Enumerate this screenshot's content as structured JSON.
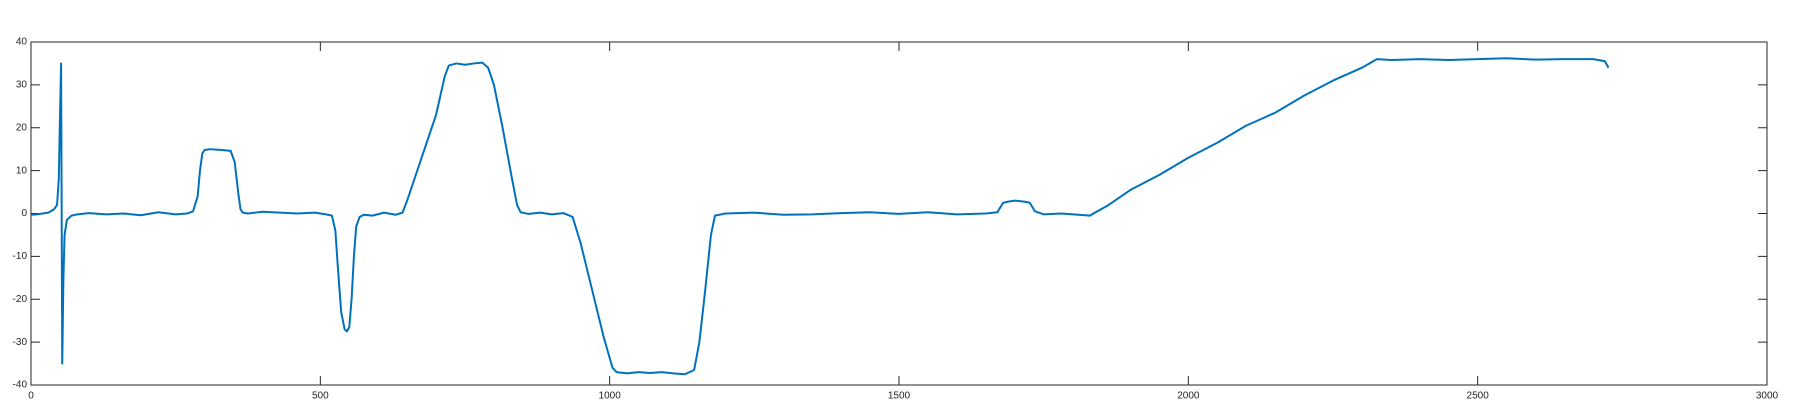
{
  "chart_data": {
    "type": "line",
    "x": [
      0,
      10,
      20,
      30,
      40,
      45,
      48,
      50,
      52,
      53,
      54,
      56,
      58,
      62,
      70,
      80,
      100,
      130,
      160,
      190,
      220,
      250,
      270,
      280,
      288,
      292,
      296,
      300,
      310,
      330,
      345,
      352,
      358,
      362,
      366,
      375,
      400,
      430,
      460,
      490,
      510,
      520,
      526,
      530,
      536,
      542,
      546,
      550,
      554,
      558,
      562,
      568,
      575,
      590,
      610,
      630,
      642,
      650,
      660,
      680,
      700,
      715,
      722,
      735,
      750,
      765,
      780,
      790,
      800,
      815,
      830,
      840,
      846,
      860,
      880,
      900,
      920,
      936,
      950,
      970,
      990,
      1005,
      1012,
      1030,
      1050,
      1070,
      1090,
      1110,
      1130,
      1146,
      1155,
      1165,
      1175,
      1182,
      1200,
      1250,
      1300,
      1350,
      1400,
      1450,
      1500,
      1550,
      1600,
      1650,
      1670,
      1680,
      1690,
      1700,
      1715,
      1726,
      1735,
      1750,
      1780,
      1810,
      1830,
      1836,
      1860,
      1900,
      1950,
      2000,
      2050,
      2100,
      2150,
      2200,
      2250,
      2300,
      2326,
      2350,
      2400,
      2450,
      2500,
      2550,
      2600,
      2650,
      2700,
      2720,
      2726
    ],
    "series": [
      {
        "color": "#0072bd",
        "values": [
          -0.3,
          -0.2,
          0,
          0.2,
          1,
          2,
          8,
          22,
          35,
          0,
          -35,
          -15,
          -5,
          -1.5,
          -0.5,
          -0.2,
          0.1,
          -0.2,
          0,
          -0.4,
          0.3,
          -0.2,
          0,
          0.5,
          4,
          10,
          14,
          14.8,
          15,
          14.8,
          14.6,
          12,
          5,
          1,
          0.2,
          0,
          0.4,
          0.2,
          0,
          0.2,
          -0.2,
          -0.5,
          -4,
          -12,
          -23,
          -27,
          -27.5,
          -26.5,
          -20,
          -10,
          -3,
          -0.8,
          -0.3,
          -0.5,
          0.2,
          -0.3,
          0.2,
          3,
          7,
          15,
          23,
          32,
          34.5,
          35,
          34.7,
          35,
          35.2,
          34,
          30,
          20,
          9,
          2,
          0.3,
          -0.1,
          0.2,
          -0.2,
          0.1,
          -0.8,
          -7,
          -18,
          -29,
          -36,
          -37,
          -37.3,
          -37,
          -37.2,
          -37,
          -37.3,
          -37.5,
          -36.5,
          -30,
          -18,
          -5,
          -0.5,
          0,
          0.2,
          -0.3,
          -0.2,
          0.1,
          0.3,
          -0.1,
          0.3,
          -0.2,
          0,
          0.3,
          2.5,
          2.8,
          3,
          2.8,
          2.5,
          0.5,
          -0.2,
          0,
          -0.3,
          -0.5,
          0,
          1.8,
          5.5,
          9,
          13,
          16.5,
          20.5,
          23.5,
          27.5,
          31,
          34,
          36,
          35.8,
          36,
          35.8,
          36,
          36.2,
          35.9,
          36,
          36,
          35.5,
          34
        ]
      }
    ],
    "xlim": [
      0,
      3000
    ],
    "xticks": [
      0,
      500,
      1000,
      1500,
      2000,
      2500,
      3000
    ],
    "ylim": [
      -40,
      40
    ],
    "yticks": [
      -40,
      -30,
      -20,
      -10,
      0,
      10,
      20,
      30,
      40
    ]
  }
}
